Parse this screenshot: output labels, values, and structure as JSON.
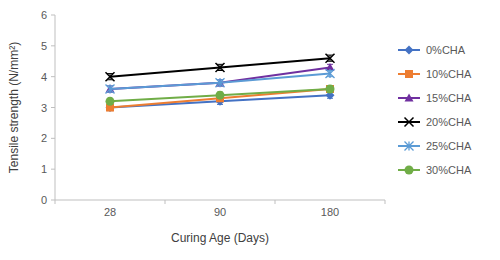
{
  "chart_data": {
    "type": "line",
    "x_label": "Curing Age (Days)",
    "y_label": "Tensile strength (N/mm²)",
    "categories": [
      "28",
      "90",
      "180"
    ],
    "ylim": [
      0,
      6
    ],
    "yticks": [
      0,
      1,
      2,
      3,
      4,
      5,
      6
    ],
    "grid": false,
    "legend": "right",
    "series": [
      {
        "name": "0%CHA",
        "color": "#4472c4",
        "marker": "diamond",
        "values": [
          3.0,
          3.2,
          3.4
        ],
        "errors": [
          0.1,
          0.1,
          0.1
        ]
      },
      {
        "name": "10%CHA",
        "color": "#ed7d31",
        "marker": "square",
        "values": [
          3.0,
          3.3,
          3.6
        ],
        "errors": [
          0.1,
          0.1,
          0.1
        ]
      },
      {
        "name": "15%CHA",
        "color": "#7030a0",
        "marker": "triangle",
        "values": [
          3.6,
          3.8,
          4.3
        ],
        "errors": [
          0.1,
          0.1,
          0.1
        ]
      },
      {
        "name": "20%CHA",
        "color": "#000000",
        "marker": "x",
        "values": [
          4.0,
          4.3,
          4.6
        ],
        "errors": [
          0.1,
          0.1,
          0.1
        ]
      },
      {
        "name": "25%CHA",
        "color": "#5b9bd5",
        "marker": "asterisk",
        "values": [
          3.6,
          3.8,
          4.1
        ],
        "errors": [
          0.1,
          0.1,
          0.1
        ]
      },
      {
        "name": "30%CHA",
        "color": "#70ad47",
        "marker": "circle",
        "values": [
          3.2,
          3.4,
          3.6
        ],
        "errors": [
          0.1,
          0.1,
          0.1
        ]
      }
    ]
  }
}
